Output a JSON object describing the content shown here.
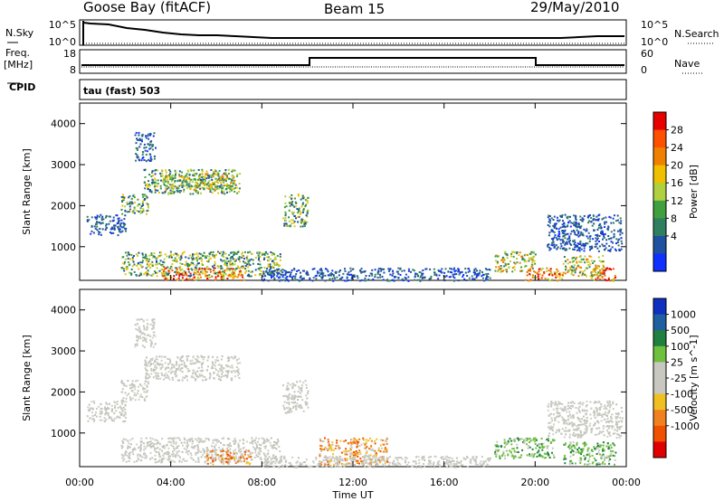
{
  "header": {
    "station": "Goose Bay (fitACF)",
    "beam": "Beam 15",
    "date": "29/May/2010"
  },
  "top_panels": {
    "nsky_label": "N.Sky",
    "nsky_ticks": [
      "10^5",
      "10^0"
    ],
    "nsearch_label": "N.Search",
    "nsearch_ticks": [
      "10^5",
      "10^0"
    ],
    "freq_label": "Freq.",
    "freq_unit": "[MHz]",
    "freq_ticks": [
      "18",
      "8"
    ],
    "nave_label": "Nave",
    "nave_ticks": [
      "60",
      "0"
    ],
    "cpid_label": "CPID",
    "cpid_value": "tau (fast) 503"
  },
  "chart_data": [
    {
      "type": "heatmap",
      "variable": "power",
      "ylabel": "Slant Range [km]",
      "y_ticks": [
        "4000",
        "3000",
        "2000",
        "1000"
      ],
      "y_tick_values": [
        4000,
        3000,
        2000,
        1000
      ],
      "ylim": [
        180,
        4500
      ],
      "xlim": [
        0,
        24
      ],
      "colorbar_label": "Power [dB]",
      "colorbar_ticks": [
        "28",
        "24",
        "20",
        "16",
        "12",
        "8",
        "4"
      ],
      "colorbar_colors": [
        "#e80000",
        "#ff5000",
        "#f08000",
        "#f0c000",
        "#b0d040",
        "#40a040",
        "#308060",
        "#2050a0",
        "#1030ff"
      ],
      "regions": [
        {
          "t0": 0.3,
          "t1": 2.0,
          "r0": 1300,
          "r1": 1800,
          "level": "low"
        },
        {
          "t0": 1.8,
          "t1": 3.0,
          "r0": 1800,
          "r1": 2300,
          "level": "mid"
        },
        {
          "t0": 2.8,
          "t1": 7.0,
          "r0": 2300,
          "r1": 2900,
          "level": "mid"
        },
        {
          "t0": 3.6,
          "t1": 6.8,
          "r0": 2400,
          "r1": 2800,
          "level": "high"
        },
        {
          "t0": 2.4,
          "t1": 3.3,
          "r0": 3100,
          "r1": 3800,
          "level": "low"
        },
        {
          "t0": 8.9,
          "t1": 10.0,
          "r0": 1500,
          "r1": 2300,
          "level": "mid"
        },
        {
          "t0": 1.8,
          "t1": 8.8,
          "r0": 300,
          "r1": 900,
          "level": "mid"
        },
        {
          "t0": 3.6,
          "t1": 7.2,
          "r0": 200,
          "r1": 500,
          "level": "hot"
        },
        {
          "t0": 8.0,
          "t1": 18.0,
          "r0": 180,
          "r1": 500,
          "level": "low"
        },
        {
          "t0": 18.2,
          "t1": 20.0,
          "r0": 400,
          "r1": 900,
          "level": "high"
        },
        {
          "t0": 19.5,
          "t1": 21.2,
          "r0": 180,
          "r1": 500,
          "level": "hot"
        },
        {
          "t0": 20.5,
          "t1": 23.8,
          "r0": 900,
          "r1": 1800,
          "level": "low"
        },
        {
          "t0": 21.2,
          "t1": 23.0,
          "r0": 300,
          "r1": 800,
          "level": "high"
        },
        {
          "t0": 22.4,
          "t1": 23.5,
          "r0": 180,
          "r1": 500,
          "level": "hot"
        }
      ]
    },
    {
      "type": "heatmap",
      "variable": "velocity",
      "ylabel": "Slant Range [km]",
      "y_ticks": [
        "4000",
        "3000",
        "2000",
        "1000"
      ],
      "y_tick_values": [
        4000,
        3000,
        2000,
        1000
      ],
      "ylim": [
        180,
        4500
      ],
      "xlim": [
        0,
        24
      ],
      "xlabel": "Time UT",
      "x_ticks": [
        "00:00",
        "04:00",
        "08:00",
        "12:00",
        "16:00",
        "20:00",
        "00:00"
      ],
      "colorbar_label": "Velocity [m s^-1]",
      "colorbar_ticks": [
        "1000",
        "500",
        "100",
        "25",
        "-25",
        "-100",
        "-500",
        "-1000"
      ],
      "colorbar_colors": [
        "#1030c0",
        "#2060a0",
        "#208040",
        "#70c040",
        "#c8c8c0",
        "#c8c8c0",
        "#f0c020",
        "#f08020",
        "#f05000",
        "#e00000"
      ],
      "regions": [
        {
          "t0": 0.3,
          "t1": 2.0,
          "r0": 1300,
          "r1": 1800,
          "level": "grey"
        },
        {
          "t0": 1.8,
          "t1": 3.0,
          "r0": 1800,
          "r1": 2300,
          "level": "grey"
        },
        {
          "t0": 2.8,
          "t1": 7.0,
          "r0": 2300,
          "r1": 2900,
          "level": "grey"
        },
        {
          "t0": 2.4,
          "t1": 3.3,
          "r0": 3100,
          "r1": 3800,
          "level": "grey"
        },
        {
          "t0": 8.9,
          "t1": 10.0,
          "r0": 1500,
          "r1": 2300,
          "level": "grey"
        },
        {
          "t0": 1.8,
          "t1": 8.8,
          "r0": 300,
          "r1": 900,
          "level": "grey"
        },
        {
          "t0": 5.5,
          "t1": 7.5,
          "r0": 250,
          "r1": 600,
          "level": "orange"
        },
        {
          "t0": 10.5,
          "t1": 13.5,
          "r0": 250,
          "r1": 900,
          "level": "orange"
        },
        {
          "t0": 8.0,
          "t1": 18.0,
          "r0": 180,
          "r1": 450,
          "level": "grey"
        },
        {
          "t0": 18.2,
          "t1": 20.8,
          "r0": 400,
          "r1": 900,
          "level": "green"
        },
        {
          "t0": 20.5,
          "t1": 23.8,
          "r0": 900,
          "r1": 1800,
          "level": "grey"
        },
        {
          "t0": 21.2,
          "t1": 23.5,
          "r0": 250,
          "r1": 800,
          "level": "green"
        }
      ]
    }
  ]
}
